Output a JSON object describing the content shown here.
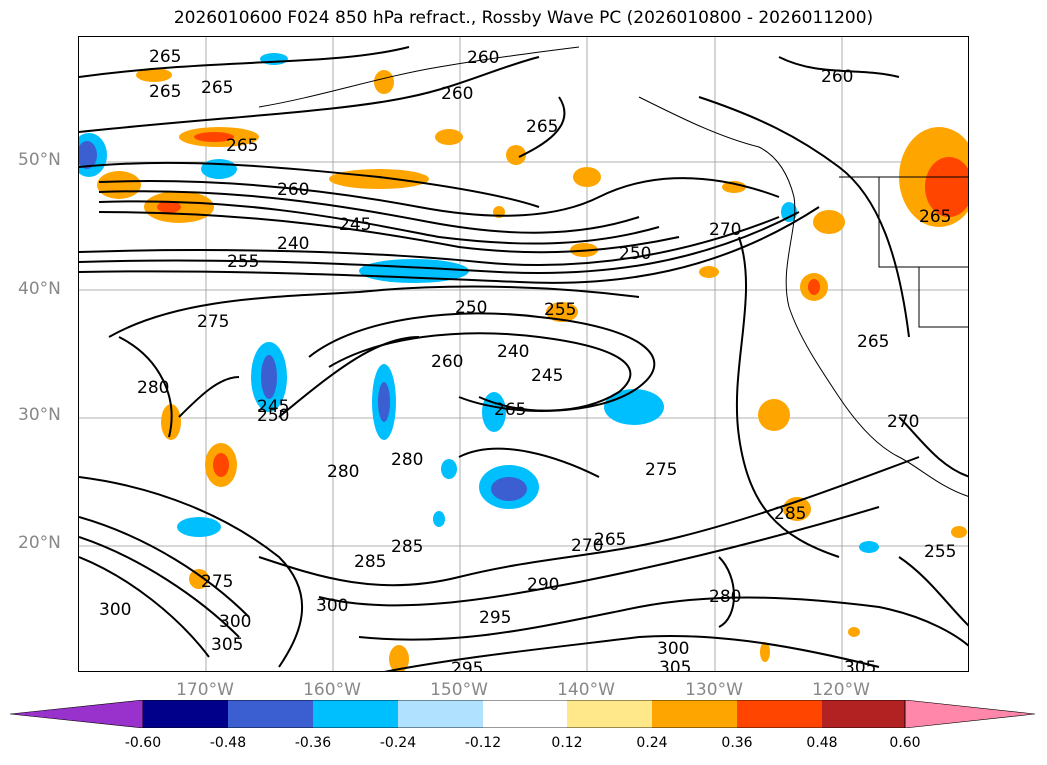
{
  "title": "2026010600 F024 850 hPa refract., Rossby Wave PC (2026010800 - 2026011200)",
  "lat_labels": [
    "50°N",
    "40°N",
    "30°N",
    "20°N"
  ],
  "lon_labels": [
    "170°W",
    "160°W",
    "150°W",
    "140°W",
    "130°W",
    "120°W"
  ],
  "colorbar": {
    "ticks": [
      "-0.60",
      "-0.48",
      "-0.36",
      "-0.24",
      "-0.12",
      "0.12",
      "0.24",
      "0.36",
      "0.48",
      "0.60"
    ],
    "colors": [
      "#9932cc",
      "#00008b",
      "#3b5fd0",
      "#00bfff",
      "#b0e2ff",
      "#ffffff",
      "#ffe88a",
      "#ffa500",
      "#ff4500",
      "#b22222",
      "#ff88aa"
    ]
  },
  "contour_labels": [
    "265",
    "265",
    "265",
    "260",
    "260",
    "260",
    "265",
    "265",
    "260",
    "250",
    "245",
    "240",
    "255",
    "250",
    "245",
    "240",
    "255",
    "275",
    "280",
    "260",
    "245",
    "265",
    "270",
    "250",
    "280",
    "280",
    "265",
    "270",
    "275",
    "285",
    "285",
    "285",
    "290",
    "295",
    "300",
    "300",
    "305",
    "305",
    "275",
    "280",
    "300",
    "270",
    "265",
    "265",
    "295",
    "300",
    "305",
    "255"
  ]
}
